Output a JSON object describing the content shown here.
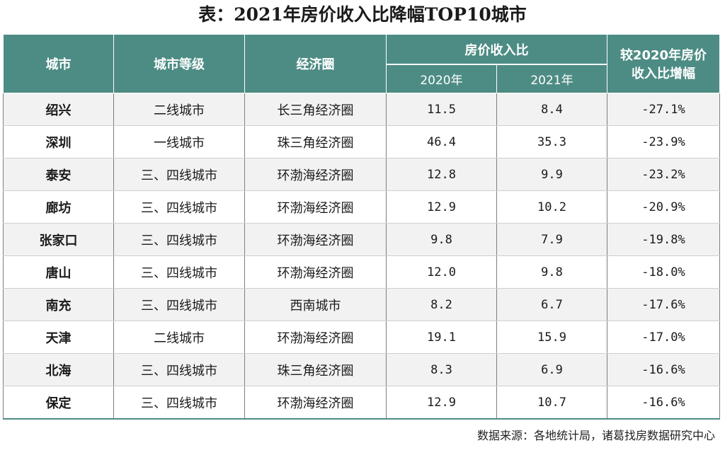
{
  "title": "表：2021年房价收入比降幅TOP10城市",
  "headers": {
    "city": "城市",
    "tier": "城市等级",
    "region": "经济圈",
    "ratio_group": "房价收入比",
    "y2020": "2020年",
    "y2021": "2021年",
    "change_line1": "较2020年房价",
    "change_line2": "收入比增幅"
  },
  "rows": [
    {
      "city": "绍兴",
      "tier": "二线城市",
      "region": "长三角经济圈",
      "r2020": "11.5",
      "r2021": "8.4",
      "change": "-27.1%"
    },
    {
      "city": "深圳",
      "tier": "一线城市",
      "region": "珠三角经济圈",
      "r2020": "46.4",
      "r2021": "35.3",
      "change": "-23.9%"
    },
    {
      "city": "泰安",
      "tier": "三、四线城市",
      "region": "环渤海经济圈",
      "r2020": "12.8",
      "r2021": "9.9",
      "change": "-23.2%"
    },
    {
      "city": "廊坊",
      "tier": "三、四线城市",
      "region": "环渤海经济圈",
      "r2020": "12.9",
      "r2021": "10.2",
      "change": "-20.9%"
    },
    {
      "city": "张家口",
      "tier": "三、四线城市",
      "region": "环渤海经济圈",
      "r2020": "9.8",
      "r2021": "7.9",
      "change": "-19.8%"
    },
    {
      "city": "唐山",
      "tier": "三、四线城市",
      "region": "环渤海经济圈",
      "r2020": "12.0",
      "r2021": "9.8",
      "change": "-18.0%"
    },
    {
      "city": "南充",
      "tier": "三、四线城市",
      "region": "西南城市",
      "r2020": "8.2",
      "r2021": "6.7",
      "change": "-17.6%"
    },
    {
      "city": "天津",
      "tier": "二线城市",
      "region": "环渤海经济圈",
      "r2020": "19.1",
      "r2021": "15.9",
      "change": "-17.0%"
    },
    {
      "city": "北海",
      "tier": "三、四线城市",
      "region": "珠三角经济圈",
      "r2020": "8.3",
      "r2021": "6.9",
      "change": "-16.6%"
    },
    {
      "city": "保定",
      "tier": "三、四线城市",
      "region": "环渤海经济圈",
      "r2020": "12.9",
      "r2021": "10.7",
      "change": "-16.6%"
    }
  ],
  "source": "数据来源：各地统计局，诸葛找房数据研究中心",
  "colors": {
    "header_bg": "#4d8c84",
    "stripe": "#f2f2f2"
  }
}
